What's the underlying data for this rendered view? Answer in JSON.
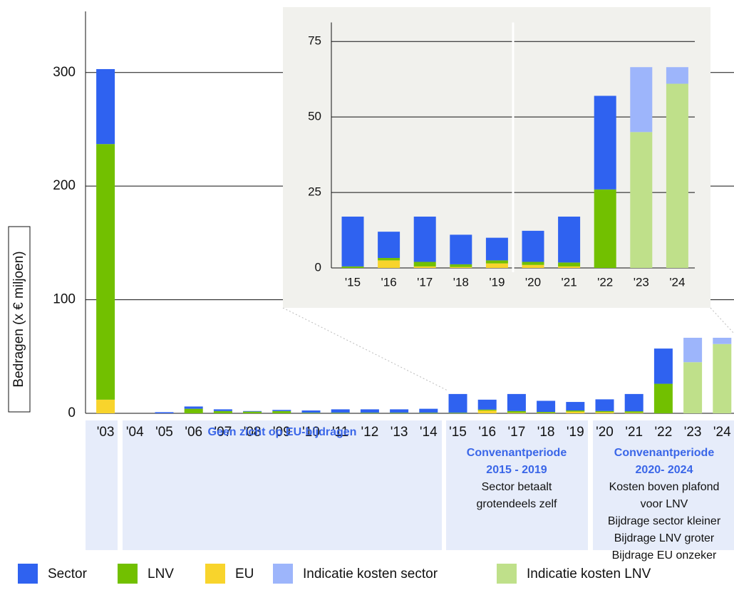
{
  "chart_data": [
    {
      "type": "bar",
      "stacked": true,
      "y_label": "Bedragen (x € miljoen)",
      "categories": [
        "'03",
        "'04",
        "'05",
        "'06",
        "'07",
        "'08",
        "'09",
        "'10",
        "'11",
        "'12",
        "'13",
        "'14",
        "'15",
        "'16",
        "'17",
        "'18",
        "'19",
        "'20",
        "'21",
        "'22",
        "'23",
        "'24"
      ],
      "series": [
        {
          "name": "Sector",
          "color": "#2f62f0",
          "values": [
            66,
            0,
            1,
            2,
            1.5,
            0.5,
            1,
            2,
            3,
            3,
            3,
            3.5,
            16.5,
            8.7,
            15,
            9.8,
            7.5,
            10.3,
            15.2,
            31,
            0,
            0
          ]
        },
        {
          "name": "LNV",
          "color": "#72c000",
          "values": [
            225,
            0,
            0,
            4,
            2,
            1.5,
            2,
            0.5,
            0.5,
            0.5,
            0.5,
            0.5,
            0.5,
            0.8,
            1.5,
            0.9,
            1,
            1,
            1.3,
            26,
            0,
            0
          ]
        },
        {
          "name": "EU",
          "color": "#f8d42c",
          "values": [
            12,
            0,
            0,
            0,
            0,
            0,
            0,
            0,
            0,
            0,
            0,
            0,
            0,
            2.5,
            0.5,
            0.3,
            1.5,
            1,
            0.5,
            0,
            0,
            0
          ]
        },
        {
          "name": "Indicatie kosten sector",
          "color": "#9db5fb",
          "values": [
            0,
            0,
            0,
            0,
            0,
            0,
            0,
            0,
            0,
            0,
            0,
            0,
            0,
            0,
            0,
            0,
            0,
            0,
            0,
            0,
            21.5,
            5.5
          ]
        },
        {
          "name": "Indicatie kosten LNV",
          "color": "#bfe08a",
          "values": [
            0,
            0,
            0,
            0,
            0,
            0,
            0,
            0,
            0,
            0,
            0,
            0,
            0,
            0,
            0,
            0,
            0,
            0,
            0,
            0,
            45,
            61
          ]
        }
      ],
      "ylim": [
        0,
        345
      ],
      "yticks": [
        0,
        100,
        200,
        300
      ],
      "grid": true,
      "annotations": [
        [
          "Geen zicht op EU-bijdragen"
        ],
        [
          "Convenantperiode",
          "2015 - 2019",
          "Sector betaalt",
          "grotendeels zelf"
        ],
        [
          "Convenantperiode",
          "2020- 2024",
          "Kosten boven plafond",
          "voor LNV",
          "Bijdrage sector kleiner",
          "Bijdrage LNV groter",
          "Bijdrage EU onzeker"
        ]
      ]
    },
    {
      "type": "bar",
      "stacked": true,
      "categories": [
        "'15",
        "'16",
        "'17",
        "'18",
        "'19",
        "'20",
        "'21",
        "'22",
        "'23",
        "'24"
      ],
      "series": [
        {
          "color": "#2f62f0",
          "values": [
            16.5,
            8.7,
            15,
            9.8,
            7.5,
            10.3,
            15.2,
            31,
            0,
            0
          ]
        },
        {
          "color": "#72c000",
          "values": [
            0.5,
            0.8,
            1.5,
            0.9,
            1,
            1,
            1.3,
            26,
            0,
            0
          ]
        },
        {
          "color": "#f8d42c",
          "values": [
            0,
            2.5,
            0.5,
            0.3,
            1.5,
            1,
            0.5,
            0,
            0,
            0
          ]
        },
        {
          "color": "#9db5fb",
          "values": [
            0,
            0,
            0,
            0,
            0,
            0,
            0,
            0,
            21.5,
            5.5
          ]
        },
        {
          "color": "#bfe08a",
          "values": [
            0,
            0,
            0,
            0,
            0,
            0,
            0,
            0,
            45,
            61
          ]
        }
      ],
      "ylim": [
        0,
        78
      ],
      "yticks": [
        0,
        25,
        50,
        75
      ],
      "grid": true
    }
  ]
}
